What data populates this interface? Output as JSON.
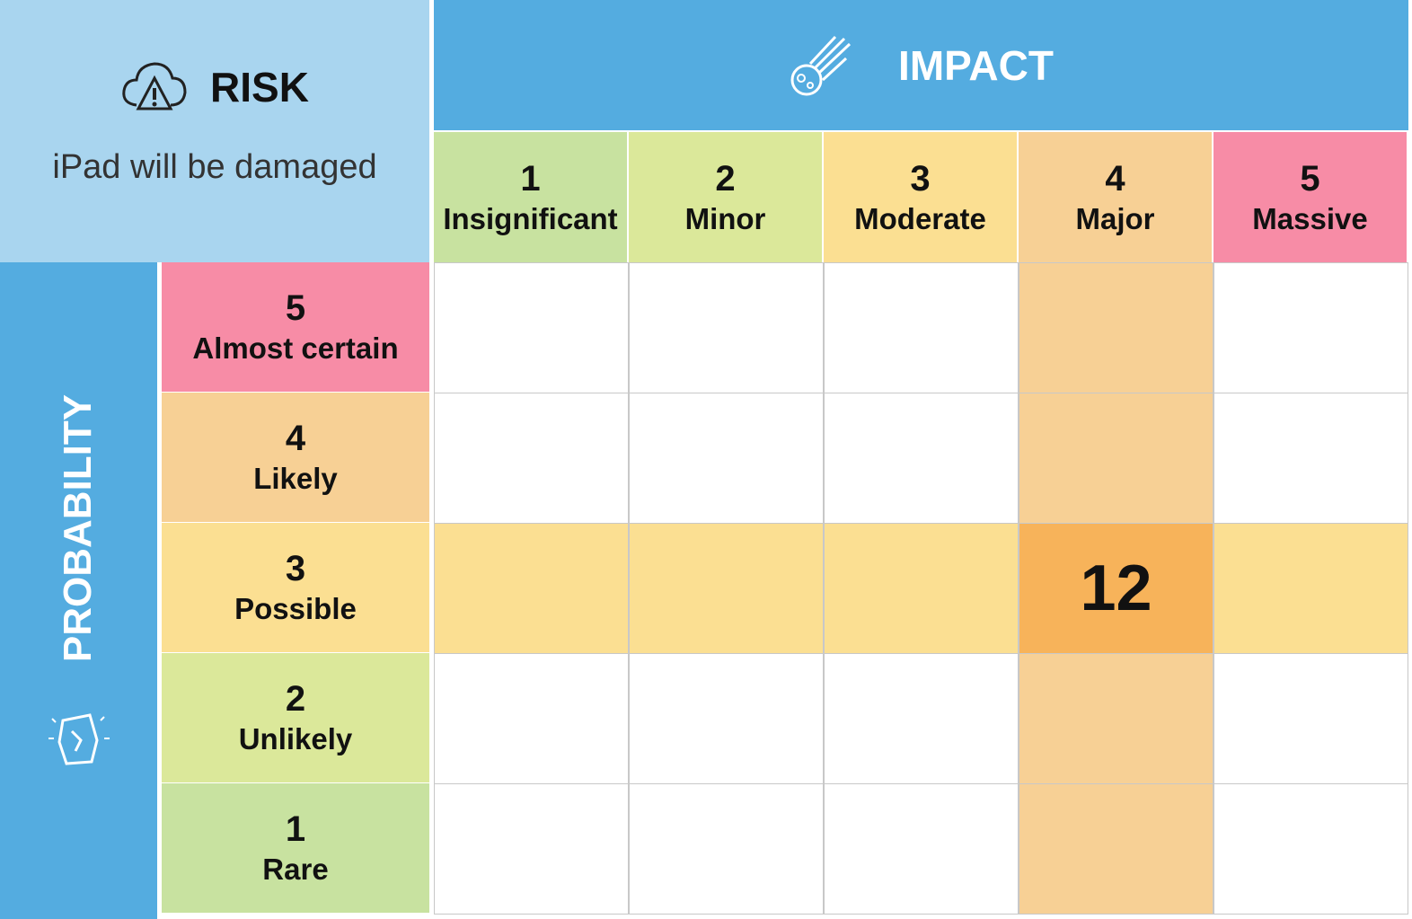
{
  "risk": {
    "title": "RISK",
    "description": "iPad will be damaged"
  },
  "impact": {
    "title": "IMPACT",
    "levels": [
      {
        "number": 1,
        "label": "Insignificant"
      },
      {
        "number": 2,
        "label": "Minor"
      },
      {
        "number": 3,
        "label": "Moderate"
      },
      {
        "number": 4,
        "label": "Major"
      },
      {
        "number": 5,
        "label": "Massive"
      }
    ]
  },
  "probability": {
    "title": "PROBABILITY",
    "levels": [
      {
        "number": 5,
        "label": "Almost certain"
      },
      {
        "number": 4,
        "label": "Likely"
      },
      {
        "number": 3,
        "label": "Possible"
      },
      {
        "number": 2,
        "label": "Unlikely"
      },
      {
        "number": 1,
        "label": "Rare"
      }
    ]
  },
  "matrix": [
    [
      null,
      null,
      null,
      null,
      null
    ],
    [
      null,
      null,
      null,
      null,
      null
    ],
    [
      null,
      null,
      null,
      12,
      null
    ],
    [
      null,
      null,
      null,
      null,
      null
    ],
    [
      null,
      null,
      null,
      null,
      null
    ]
  ]
}
